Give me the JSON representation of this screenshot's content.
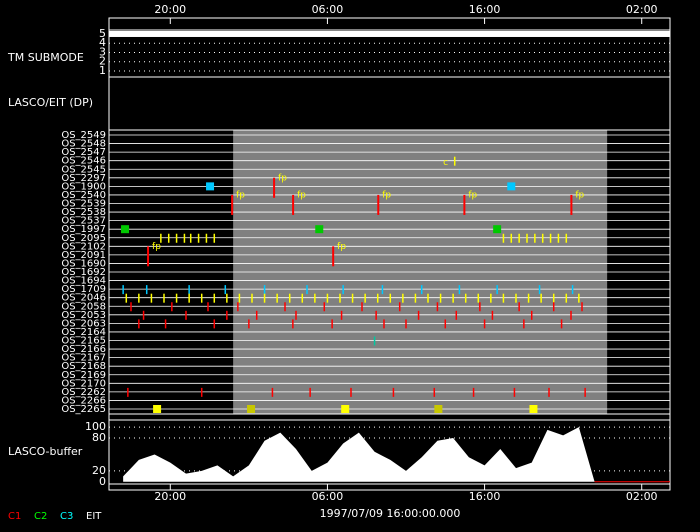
{
  "time_axis": {
    "xlim": [
      16.1,
      51.8
    ],
    "ticks": [
      {
        "value": 20,
        "label": "20:00"
      },
      {
        "value": 30,
        "label": "06:00"
      },
      {
        "value": 40,
        "label": "16:00"
      },
      {
        "value": 50,
        "label": "02:00"
      }
    ]
  },
  "submode": {
    "label": "TM SUBMODE",
    "ylim": [
      0.35,
      5.43
    ],
    "ticks": [
      5,
      4,
      3,
      2,
      1
    ],
    "level": 5
  },
  "lasco_eit": {
    "label": "LASCO/EIT (DP)",
    "shade": [
      24.0,
      47.8
    ],
    "rows": [
      "OS_2549",
      "OS_2548",
      "OS_2547",
      "OS_2546",
      "OS_2545",
      "OS_2297",
      "OS_1900",
      "OS_2540",
      "OS_2539",
      "OS_2538",
      "OS_2537",
      "OS_1997",
      "OS_2095",
      "OS_2102",
      "OS_2091",
      "OS_1690",
      "OS_1692",
      "OS_1694",
      "OS_1709",
      "OS_2046",
      "OS_2058",
      "OS_2053",
      "OS_2063",
      "OS_2164",
      "OS_2165",
      "OS_2166",
      "OS_2167",
      "OS_2168",
      "OS_2169",
      "OS_2170",
      "OS_2262",
      "OS_2266",
      "OS_2265"
    ],
    "events": [
      {
        "row": 32,
        "color": "#ffff00",
        "kind": "square",
        "times": [
          19.16,
          31.13,
          43.11
        ]
      },
      {
        "row": 32,
        "color": "#c8c800",
        "kind": "square",
        "times": [
          25.14,
          37.06
        ]
      },
      {
        "row": 6,
        "color": "#00c8ff",
        "kind": "square",
        "times": [
          22.53,
          41.7
        ]
      },
      {
        "row": 11,
        "color": "#00c800",
        "kind": "square",
        "times": [
          17.12,
          29.48,
          40.8
        ]
      },
      {
        "row": 12,
        "color": "#ffff00",
        "kind": "tick",
        "times": [
          19.4,
          19.9,
          20.4,
          20.9,
          21.3,
          21.8,
          22.3,
          22.8,
          41.2,
          41.7,
          42.2,
          42.7,
          43.2,
          43.7,
          44.2,
          44.7,
          45.2
        ]
      },
      {
        "row": 18,
        "color": "#00c8ff",
        "kind": "tick",
        "times": [
          17.0,
          18.5,
          21.2,
          23.5,
          26.0,
          28.7,
          31.0,
          33.5,
          36.0,
          38.4,
          40.8,
          43.5,
          45.6
        ]
      },
      {
        "row": 19,
        "color": "#ffff00",
        "kind": "tick",
        "times": [
          17.2,
          18.0,
          18.8,
          19.6,
          20.4,
          21.2,
          22.0,
          22.8,
          23.6,
          24.4,
          25.2,
          26.0,
          26.8,
          27.6,
          28.4,
          29.2,
          30.0,
          30.8,
          31.6,
          32.4,
          33.2,
          34.0,
          34.8,
          35.6,
          36.4,
          37.2,
          38.0,
          38.8,
          39.6,
          40.4,
          41.2,
          42.0,
          42.8,
          43.6,
          44.4,
          45.2,
          46.0
        ]
      },
      {
        "row": 20,
        "color": "#ff0000",
        "kind": "tick",
        "times": [
          17.5,
          20.1,
          22.4,
          24.3,
          27.3,
          29.8,
          32.2,
          34.6,
          37.0,
          39.7,
          42.2,
          44.4,
          46.2
        ]
      },
      {
        "row": 21,
        "color": "#ff0000",
        "kind": "tick",
        "times": [
          18.3,
          21.0,
          23.6,
          25.5,
          28.0,
          30.9,
          33.1,
          35.8,
          38.2,
          40.5,
          43.0,
          45.5
        ]
      },
      {
        "row": 22,
        "color": "#ff0000",
        "kind": "tick",
        "times": [
          18.0,
          19.7,
          22.8,
          25.0,
          27.8,
          30.3,
          33.6,
          35.0,
          37.5,
          40.0,
          42.5,
          44.9
        ]
      },
      {
        "row": 30,
        "color": "#ff0000",
        "kind": "tick",
        "times": [
          17.3,
          22.0,
          26.5,
          28.9,
          31.5,
          34.2,
          36.8,
          39.3,
          41.9,
          44.1,
          46.4
        ]
      },
      {
        "row": 24,
        "color": "#00c8a0",
        "kind": "tick",
        "times": [
          33.0
        ]
      },
      {
        "row": 3,
        "color": "#ffff00",
        "kind": "tick",
        "times": [
          38.1
        ]
      }
    ],
    "fp": {
      "text": "fp",
      "marks": [
        {
          "row": 5,
          "time": 26.86
        },
        {
          "row": 7,
          "time": 24.19
        },
        {
          "row": 7,
          "time": 28.07
        },
        {
          "row": 7,
          "time": 33.49
        },
        {
          "row": 7,
          "time": 38.97
        },
        {
          "row": 7,
          "time": 45.78
        },
        {
          "row": 13,
          "time": 18.84
        },
        {
          "row": 13,
          "time": 30.62
        }
      ]
    },
    "c_mark": {
      "text": "c",
      "row": 3,
      "time": 38.0
    }
  },
  "buffer": {
    "label": "LASCO-buffer",
    "ylim": [
      -4,
      113
    ],
    "yticks": [
      0,
      20,
      80,
      100
    ],
    "color": "#ffffff",
    "times": [
      17,
      18,
      19,
      20,
      21,
      22,
      23,
      24,
      25,
      26,
      27,
      28,
      29,
      30,
      31,
      32,
      33,
      34,
      35,
      36,
      37,
      38,
      39,
      40,
      41,
      42,
      43,
      44,
      45,
      46,
      47,
      48,
      49,
      50,
      51
    ],
    "values": [
      10,
      40,
      50,
      35,
      15,
      20,
      30,
      10,
      30,
      75,
      90,
      60,
      20,
      35,
      70,
      90,
      55,
      40,
      20,
      45,
      75,
      80,
      45,
      30,
      60,
      25,
      35,
      95,
      85,
      100,
      0,
      0,
      0,
      0,
      0
    ]
  },
  "legend": [
    {
      "text": "C1",
      "color": "#ff0000"
    },
    {
      "text": "C2",
      "color": "#00ff00"
    },
    {
      "text": "C3",
      "color": "#00ffff"
    },
    {
      "text": "EIT",
      "color": "#ffffff"
    }
  ],
  "timestamp": "1997/07/09 16:00:00.000"
}
